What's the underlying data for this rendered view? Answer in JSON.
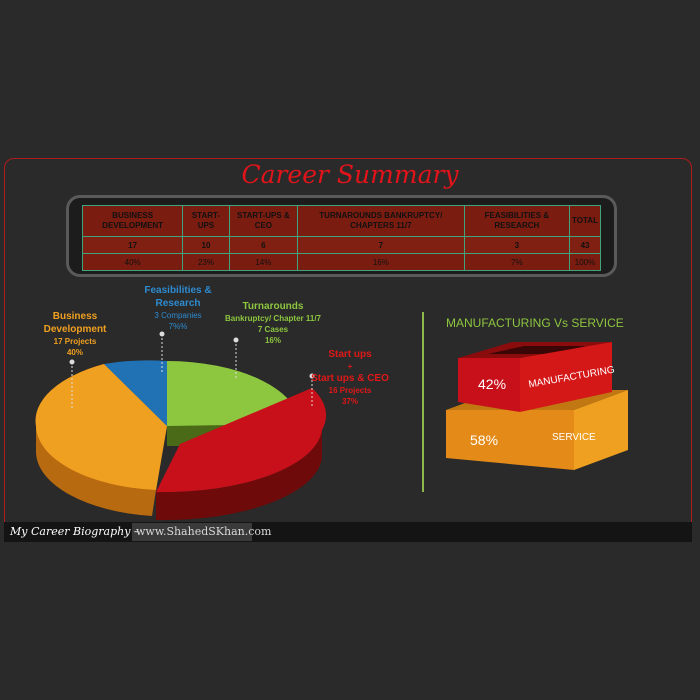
{
  "title": "Career Summary",
  "table": {
    "headers": [
      "BUSINESS DEVELOPMENT",
      "START-UPS",
      "START-UPS & CEO",
      "TURNAROUNDS BANKRUPTCY/ CHAPTERS 11/7",
      "FEASIBILITIES & RESEARCH",
      "TOTAL"
    ],
    "counts": [
      "17",
      "10",
      "6",
      "7",
      "3",
      "43"
    ],
    "percents": [
      "40%",
      "23%",
      "14%",
      "16%",
      "7%",
      "100%"
    ]
  },
  "chart_data": [
    {
      "type": "pie",
      "title": "",
      "slices": [
        {
          "label": "Business Development",
          "detail": "17 Projects",
          "percent": 40,
          "color": "#f0a020"
        },
        {
          "label": "Feasibilities & Research",
          "detail": "3 Companies",
          "percent": 7,
          "color": "#2171b5"
        },
        {
          "label": "Turnarounds",
          "detail": "Bankruptcy/ Chapter 11/7 · 7 Cases",
          "percent": 16,
          "color": "#8dc63f"
        },
        {
          "label": "Start ups + Start ups & CEO",
          "detail": "16 Projects",
          "percent": 37,
          "color": "#c8101a"
        }
      ]
    },
    {
      "type": "bar",
      "title": "MANUFACTURING Vs SERVICE",
      "categories": [
        "MANUFACTURING",
        "SERVICE"
      ],
      "values": [
        42,
        58
      ],
      "colors": [
        "#d01818",
        "#f0a020"
      ]
    }
  ],
  "labels": {
    "bd_name": "Business Development",
    "bd_line1": "Business",
    "bd_line2": "Development",
    "bd_projects": "17 Projects",
    "bd_pct": "40%",
    "fr_line1": "Feasibilities &",
    "fr_line2": "Research",
    "fr_companies": "3 Companies",
    "fr_pct": "7%%",
    "tr_name": "Turnarounds",
    "tr_sub": "Bankruptcy/ Chapter 11/7",
    "tr_cases": "7 Cases",
    "tr_pct": "16%",
    "su_line1": "Start ups",
    "su_plus": "+",
    "su_line2": "Start ups & CEO",
    "su_projects": "16 Projects",
    "su_pct": "37%"
  },
  "mvs": {
    "title": "MANUFACTURING Vs SERVICE",
    "mfg_pct": "42%",
    "mfg_label": "MANUFACTURING",
    "svc_pct": "58%",
    "svc_label": "SERVICE"
  },
  "footer": {
    "text": "My Career Biography –",
    "url": "www.ShahedSKhan.com"
  }
}
